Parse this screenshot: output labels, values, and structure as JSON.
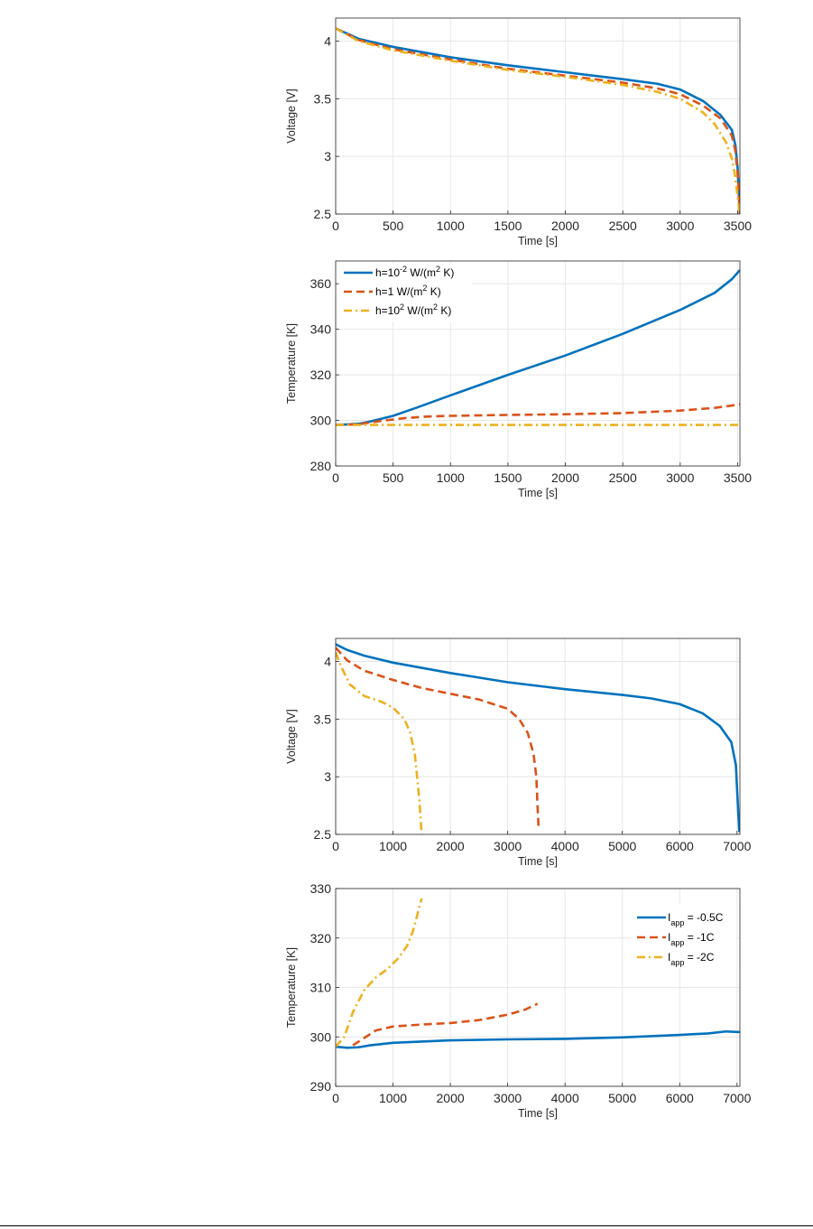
{
  "colors": {
    "blue": "#0072BD",
    "orange": "#D95319",
    "yellow": "#EDB120",
    "axis": "#262626",
    "grid": "#e6e6e6"
  },
  "chart_data": [
    {
      "type": "line",
      "xlabel": "Time [s]",
      "ylabel": "Voltage [V]",
      "xlim": [
        0,
        3520
      ],
      "ylim": [
        2.5,
        4.2
      ],
      "xticks": [
        0,
        500,
        1000,
        1500,
        2000,
        2500,
        3000,
        3500
      ],
      "yticks": [
        2.5,
        3,
        3.5,
        4
      ],
      "ytick_labels": [
        "2.5",
        "3",
        "3.5",
        "4"
      ],
      "grid": true,
      "series": [
        {
          "color": "#0072BD",
          "dash": "solid",
          "x": [
            0,
            200,
            500,
            1000,
            1500,
            2000,
            2500,
            2800,
            3000,
            3200,
            3350,
            3450,
            3480,
            3500,
            3510,
            3520
          ],
          "y": [
            4.11,
            4.02,
            3.95,
            3.86,
            3.79,
            3.73,
            3.67,
            3.63,
            3.58,
            3.48,
            3.36,
            3.23,
            3.1,
            2.9,
            2.7,
            2.5
          ]
        },
        {
          "color": "#D95319",
          "dash": "dashed",
          "x": [
            0,
            200,
            500,
            1000,
            1500,
            2000,
            2500,
            2800,
            3000,
            3200,
            3350,
            3450,
            3480,
            3500,
            3510,
            3520
          ],
          "y": [
            4.11,
            4.01,
            3.93,
            3.84,
            3.76,
            3.7,
            3.64,
            3.59,
            3.54,
            3.44,
            3.33,
            3.18,
            3.05,
            2.85,
            2.68,
            2.5
          ]
        },
        {
          "color": "#EDB120",
          "dash": "dashdot",
          "x": [
            0,
            200,
            500,
            1000,
            1500,
            2000,
            2500,
            2800,
            3000,
            3200,
            3300,
            3400,
            3450,
            3480,
            3500,
            3520
          ],
          "y": [
            4.11,
            4.0,
            3.92,
            3.83,
            3.75,
            3.69,
            3.62,
            3.56,
            3.5,
            3.38,
            3.28,
            3.12,
            2.98,
            2.82,
            2.65,
            2.5
          ]
        }
      ]
    },
    {
      "type": "line",
      "xlabel": "Time [s]",
      "ylabel": "Temperature [K]",
      "xlim": [
        0,
        3520
      ],
      "ylim": [
        280,
        370
      ],
      "xticks": [
        0,
        500,
        1000,
        1500,
        2000,
        2500,
        3000,
        3500
      ],
      "yticks": [
        280,
        300,
        320,
        340,
        360
      ],
      "ytick_labels": [
        "280",
        "300",
        "320",
        "340",
        "360"
      ],
      "grid": true,
      "legend_position": "top-left",
      "series": [
        {
          "name": "h=10-2 W/(m2 K)",
          "color": "#0072BD",
          "dash": "solid",
          "x": [
            0,
            200,
            300,
            500,
            700,
            1000,
            1500,
            2000,
            2500,
            3000,
            3300,
            3450,
            3520
          ],
          "y": [
            298,
            298.5,
            299.5,
            302,
            305.5,
            311,
            320,
            328.5,
            338,
            348.5,
            356,
            362,
            366
          ]
        },
        {
          "name": "h=1 W/(m2 K)",
          "color": "#D95319",
          "dash": "dashed",
          "x": [
            0,
            200,
            400,
            600,
            800,
            1000,
            1500,
            2000,
            2500,
            3000,
            3300,
            3520
          ],
          "y": [
            298,
            298.3,
            299.8,
            301,
            301.7,
            302,
            302.4,
            302.7,
            303.2,
            304.3,
            305.5,
            307
          ]
        },
        {
          "name": "h=102 W/(m2 K)",
          "color": "#EDB120",
          "dash": "dashdot",
          "x": [
            0,
            1000,
            2000,
            3000,
            3520
          ],
          "y": [
            298,
            298,
            298,
            298,
            298
          ]
        }
      ]
    },
    {
      "type": "line",
      "xlabel": "Time [s]",
      "ylabel": "Voltage [V]",
      "xlim": [
        0,
        7050
      ],
      "ylim": [
        2.5,
        4.2
      ],
      "xticks": [
        0,
        1000,
        2000,
        3000,
        4000,
        5000,
        6000,
        7000
      ],
      "yticks": [
        2.5,
        3,
        3.5,
        4
      ],
      "ytick_labels": [
        "2.5",
        "3",
        "3.5",
        "4"
      ],
      "grid": true,
      "series": [
        {
          "color": "#0072BD",
          "dash": "solid",
          "x": [
            0,
            200,
            500,
            1000,
            2000,
            3000,
            4000,
            5000,
            5500,
            6000,
            6400,
            6700,
            6900,
            6980,
            7000,
            7020,
            7040
          ],
          "y": [
            4.15,
            4.1,
            4.05,
            3.99,
            3.9,
            3.82,
            3.76,
            3.71,
            3.68,
            3.63,
            3.55,
            3.44,
            3.3,
            3.1,
            2.9,
            2.7,
            2.52
          ]
        },
        {
          "color": "#D95319",
          "dash": "dashed",
          "x": [
            0,
            200,
            500,
            1000,
            1500,
            2000,
            2500,
            3000,
            3200,
            3350,
            3450,
            3500,
            3520,
            3540
          ],
          "y": [
            4.12,
            4.01,
            3.92,
            3.84,
            3.77,
            3.72,
            3.67,
            3.59,
            3.5,
            3.38,
            3.2,
            3.0,
            2.75,
            2.55
          ]
        },
        {
          "color": "#EDB120",
          "dash": "dashdot",
          "x": [
            0,
            100,
            250,
            500,
            800,
            1000,
            1200,
            1300,
            1380,
            1420,
            1460,
            1480,
            1500
          ],
          "y": [
            4.08,
            3.95,
            3.8,
            3.7,
            3.65,
            3.6,
            3.5,
            3.38,
            3.2,
            3.0,
            2.8,
            2.65,
            2.5
          ]
        }
      ]
    },
    {
      "type": "line",
      "xlabel": "Time [s]",
      "ylabel": "Temperature [K]",
      "xlim": [
        0,
        7050
      ],
      "ylim": [
        290,
        330
      ],
      "xticks": [
        0,
        1000,
        2000,
        3000,
        4000,
        5000,
        6000,
        7000
      ],
      "yticks": [
        290,
        300,
        310,
        320,
        330
      ],
      "ytick_labels": [
        "290",
        "300",
        "310",
        "320",
        "330"
      ],
      "grid": true,
      "legend_position": "top-right",
      "series": [
        {
          "name": "Iapp = -0.5C",
          "color": "#0072BD",
          "dash": "solid",
          "x": [
            0,
            200,
            400,
            600,
            1000,
            2000,
            3000,
            4000,
            5000,
            6000,
            6500,
            6800,
            7000,
            7050
          ],
          "y": [
            298,
            297.8,
            297.9,
            298.3,
            298.8,
            299.3,
            299.5,
            299.6,
            299.9,
            300.4,
            300.7,
            301.1,
            301,
            301
          ]
        },
        {
          "name": "Iapp = -1C",
          "color": "#D95319",
          "dash": "dashed",
          "x": [
            300,
            500,
            700,
            1000,
            1500,
            2000,
            2500,
            3000,
            3300,
            3520
          ],
          "y": [
            298.3,
            299.8,
            301.3,
            302.1,
            302.5,
            302.8,
            303.4,
            304.5,
            305.5,
            306.7
          ]
        },
        {
          "name": "Iapp = -2C",
          "color": "#EDB120",
          "dash": "dashdot",
          "x": [
            0,
            150,
            300,
            500,
            700,
            900,
            1100,
            1250,
            1350,
            1420,
            1470,
            1500
          ],
          "y": [
            298,
            300,
            305,
            309.5,
            312,
            313.7,
            316,
            318.5,
            321.5,
            324.5,
            326.8,
            328
          ]
        }
      ]
    }
  ]
}
